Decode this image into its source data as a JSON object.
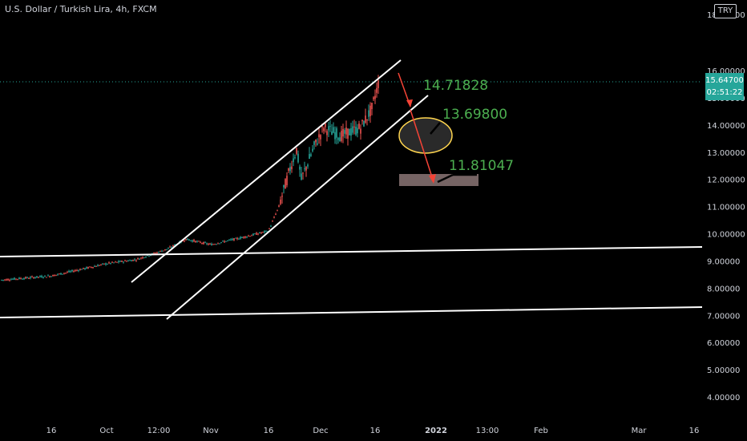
{
  "header": {
    "title": "U.S. Dollar / Turkish Lira, 4h, FXCM",
    "currency": "TRY"
  },
  "price_label": {
    "price": "15.64700",
    "countdown": "02:51:22"
  },
  "annotations": {
    "target1": "14.71828",
    "target2": "13.69800",
    "target3": "11.81047"
  },
  "colors": {
    "background": "#000000",
    "up": "#26a69a",
    "down": "#ef5350",
    "annotation_text": "#4caf50",
    "arrow": "#f44336",
    "ellipse": "#ffd54f",
    "zone": "#d7b7b7"
  },
  "chart_data": {
    "type": "candlestick",
    "title": "U.S. Dollar / Turkish Lira, 4h, FXCM",
    "ylim": [
      3.5,
      18.4
    ],
    "y_ticks": [
      "4.00000",
      "5.00000",
      "6.00000",
      "7.00000",
      "8.00000",
      "9.00000",
      "10.00000",
      "11.00000",
      "12.00000",
      "13.00000",
      "14.00000",
      "15.00000",
      "16.00000",
      "18.00000"
    ],
    "x_ticks": [
      "16",
      "Oct",
      "12:00",
      "Nov",
      "16",
      "Dec",
      "16",
      "2022",
      "13:00",
      "Feb",
      "Mar",
      "16"
    ],
    "last_price": 15.647,
    "price_path": [
      {
        "t": "Sep 1",
        "v": 8.3
      },
      {
        "t": "Sep 16",
        "v": 8.45
      },
      {
        "t": "Oct 1",
        "v": 8.9
      },
      {
        "t": "Oct 10",
        "v": 9.05
      },
      {
        "t": "Oct 20",
        "v": 9.45
      },
      {
        "t": "Oct 25",
        "v": 9.8
      },
      {
        "t": "Nov 1",
        "v": 9.6
      },
      {
        "t": "Nov 10",
        "v": 9.85
      },
      {
        "t": "Nov 16",
        "v": 10.1
      },
      {
        "t": "Nov 19",
        "v": 11.0
      },
      {
        "t": "Nov 22",
        "v": 12.4
      },
      {
        "t": "Nov 23",
        "v": 13.1
      },
      {
        "t": "Nov 24",
        "v": 12.0
      },
      {
        "t": "Nov 30",
        "v": 13.2
      },
      {
        "t": "Dec 3",
        "v": 13.9
      },
      {
        "t": "Dec 8",
        "v": 13.6
      },
      {
        "t": "Dec 13",
        "v": 13.9
      },
      {
        "t": "Dec 16",
        "v": 14.6
      },
      {
        "t": "Dec 18",
        "v": 15.647
      }
    ]
  }
}
